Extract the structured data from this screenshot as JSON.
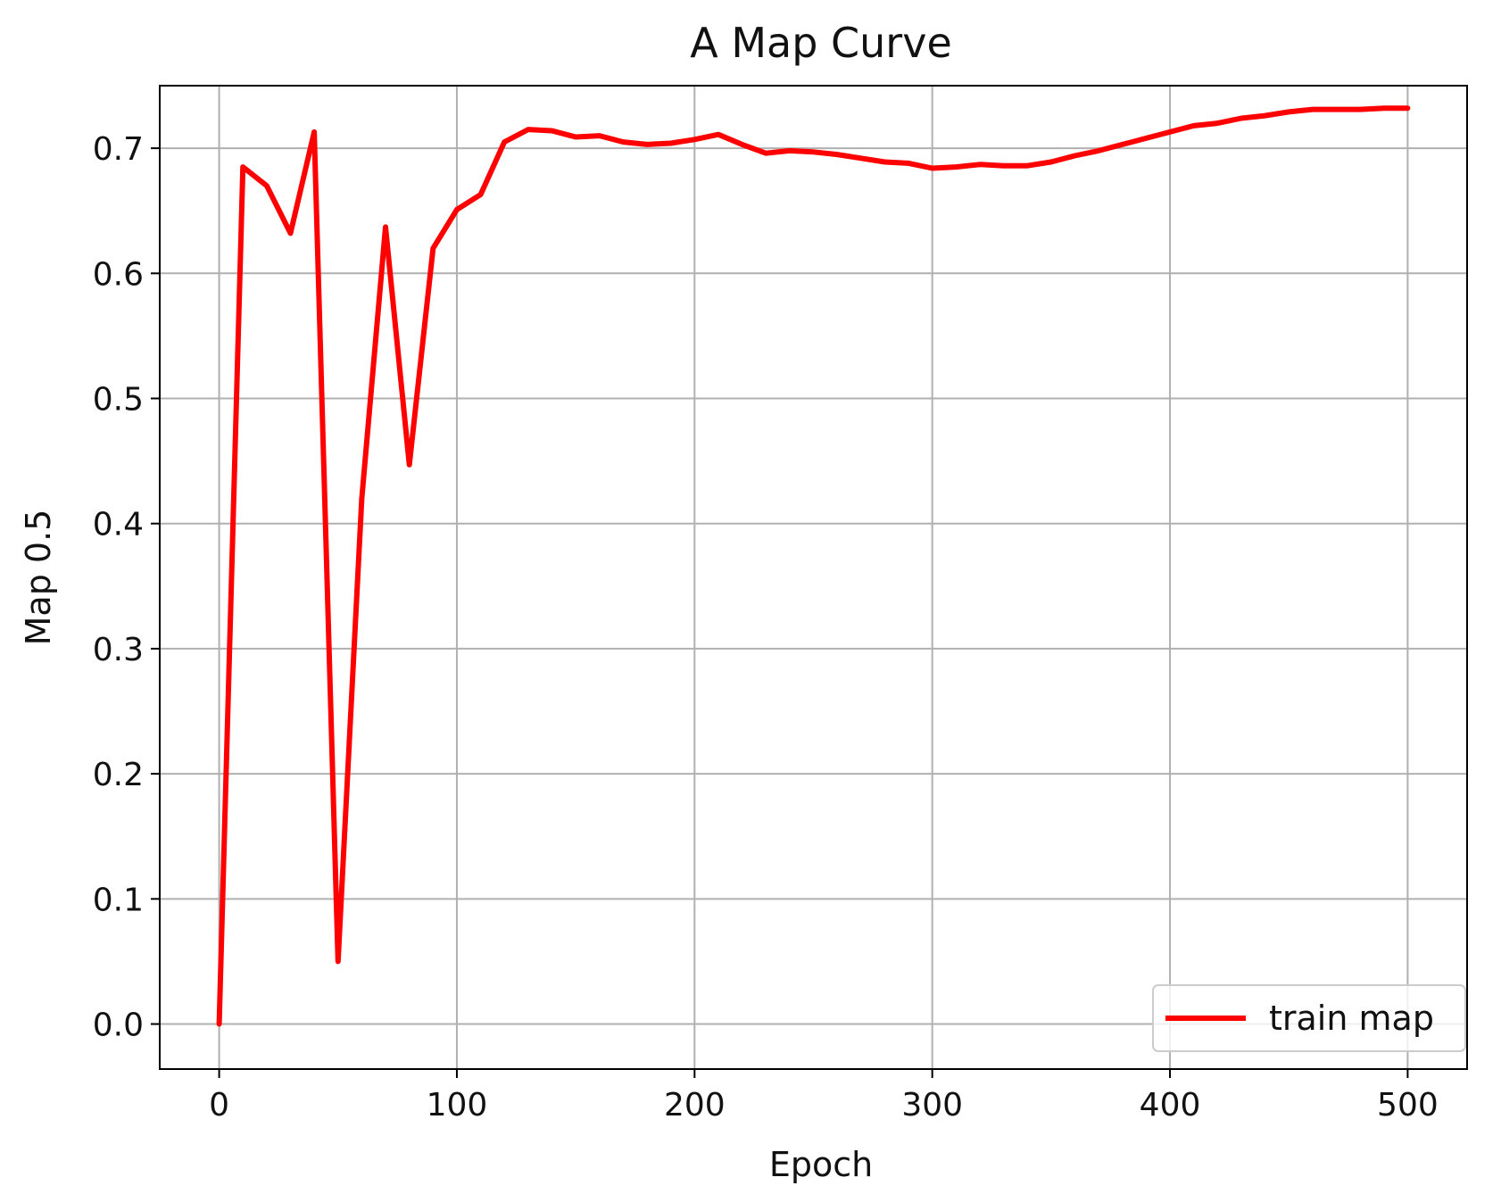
{
  "chart_data": {
    "type": "line",
    "title": "A Map Curve",
    "xlabel": "Epoch",
    "ylabel": "Map 0.5",
    "xlim": [
      -25,
      525
    ],
    "ylim": [
      -0.036,
      0.75
    ],
    "xticks": [
      0,
      100,
      200,
      300,
      400,
      500
    ],
    "xtick_labels": [
      "0",
      "100",
      "200",
      "300",
      "400",
      "500"
    ],
    "yticks": [
      0.0,
      0.1,
      0.2,
      0.3,
      0.4,
      0.5,
      0.6,
      0.7
    ],
    "ytick_labels": [
      "0.0",
      "0.1",
      "0.2",
      "0.3",
      "0.4",
      "0.5",
      "0.6",
      "0.7"
    ],
    "grid": true,
    "legend_position": "bottom-right",
    "series": [
      {
        "name": "train map",
        "color": "#ff0000",
        "x": [
          0,
          10,
          20,
          30,
          40,
          50,
          60,
          70,
          80,
          90,
          100,
          110,
          120,
          130,
          140,
          150,
          160,
          170,
          180,
          190,
          200,
          210,
          220,
          230,
          240,
          250,
          260,
          270,
          280,
          290,
          300,
          310,
          320,
          330,
          340,
          350,
          360,
          370,
          380,
          390,
          400,
          410,
          420,
          430,
          440,
          450,
          460,
          470,
          480,
          490,
          500
        ],
        "y": [
          0.0,
          0.685,
          0.67,
          0.632,
          0.713,
          0.05,
          0.42,
          0.637,
          0.447,
          0.62,
          0.651,
          0.663,
          0.705,
          0.715,
          0.714,
          0.709,
          0.71,
          0.705,
          0.703,
          0.704,
          0.707,
          0.711,
          0.703,
          0.696,
          0.698,
          0.697,
          0.695,
          0.692,
          0.689,
          0.688,
          0.684,
          0.685,
          0.687,
          0.686,
          0.686,
          0.689,
          0.694,
          0.698,
          0.703,
          0.708,
          0.713,
          0.718,
          0.72,
          0.724,
          0.726,
          0.729,
          0.731,
          0.731,
          0.731,
          0.732,
          0.732
        ]
      }
    ]
  }
}
